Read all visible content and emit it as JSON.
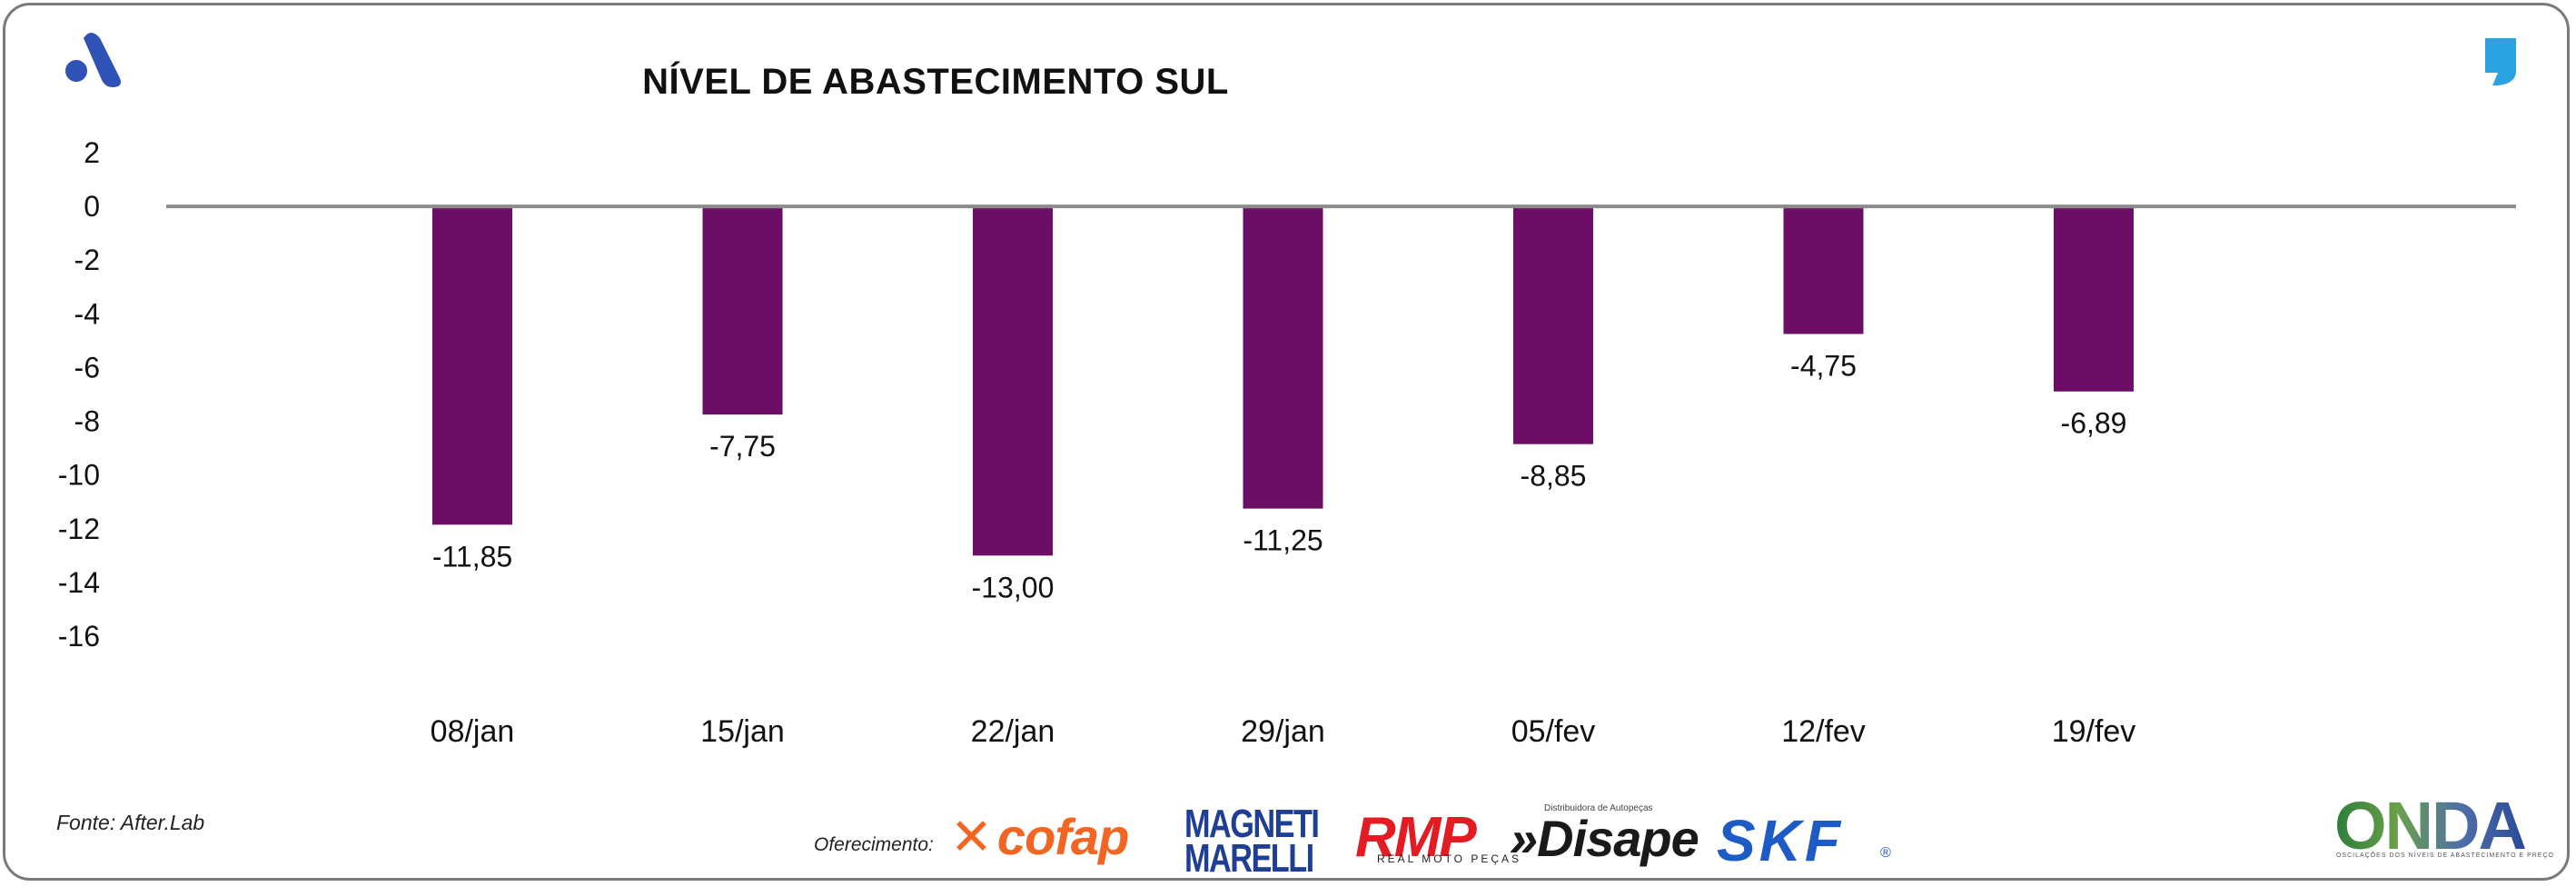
{
  "chart_data": {
    "type": "bar",
    "title": "NÍVEL DE ABASTECIMENTO SUL",
    "categories": [
      "08/jan",
      "15/jan",
      "22/jan",
      "29/jan",
      "05/fev",
      "12/fev",
      "19/fev"
    ],
    "values": [
      -11.85,
      -7.75,
      -13.0,
      -11.25,
      -8.85,
      -4.75,
      -6.89
    ],
    "data_labels": [
      "-11,85",
      "-7,75",
      "-13,00",
      "-11,25",
      "-8,85",
      "-4,75",
      "-6,89"
    ],
    "yticks": [
      2,
      0,
      -2,
      -4,
      -6,
      -8,
      -10,
      -12,
      -14,
      -16
    ],
    "ylim": [
      -16,
      2
    ],
    "xlabel": "",
    "ylabel": "",
    "grid": false,
    "bar_color": "#6d0e66"
  },
  "footer": {
    "source": "Fonte: After.Lab",
    "offer_label": "Oferecimento:",
    "sponsors": {
      "cofap": "cofap",
      "magneti_top": "MAGNETI",
      "magneti_bottom": "MARELLI",
      "rmp": "RMP",
      "rmp_sub": "REAL MOTO PEÇAS",
      "disape": "»Disape",
      "disape_sub": "Distribuidora de Autopeças",
      "skf": "SKF",
      "onda": "ONDA",
      "onda_sub": "OSCILAÇÕES DOS NÍVEIS DE ABASTECIMENTO E PREÇO"
    }
  },
  "icons": {
    "brand_left": "after-lab-logo-icon",
    "brand_right": "quote-mark-icon"
  },
  "colors": {
    "brand_blue": "#2f52b6",
    "quote_blue": "#2aa3e0"
  }
}
